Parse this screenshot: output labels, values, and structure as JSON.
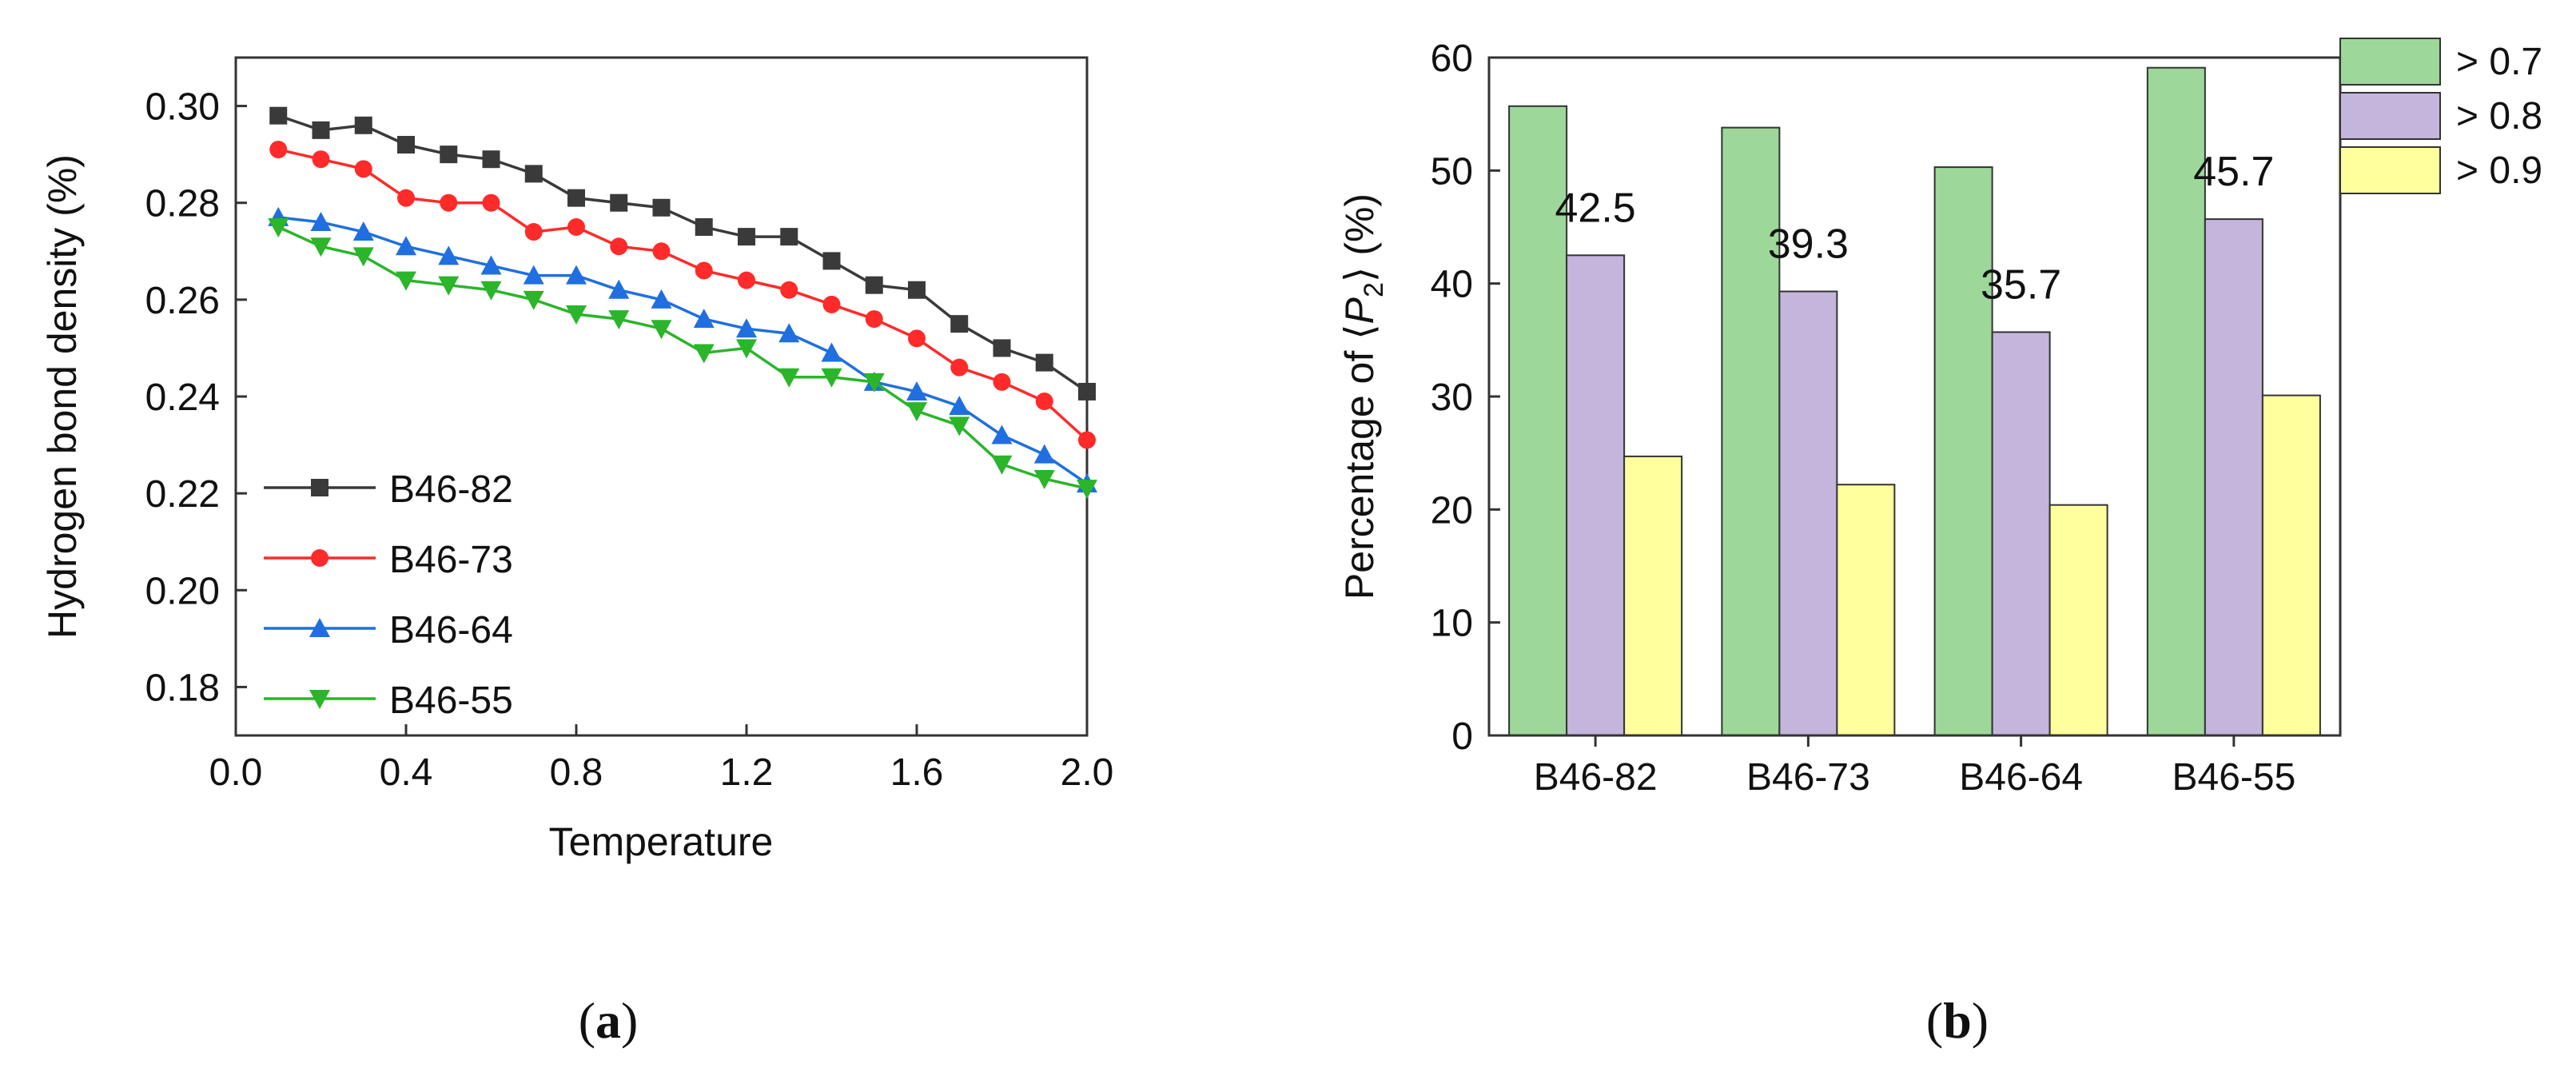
{
  "chart_data": [
    {
      "type": "line",
      "panel_label": "a",
      "xlabel": "Temperature",
      "ylabel": "Hydrogen bond density (%)",
      "xlim": [
        0.0,
        2.0
      ],
      "ylim": [
        0.17,
        0.31
      ],
      "x_ticks": [
        "0.0",
        "0.4",
        "0.8",
        "1.2",
        "1.6",
        "2.0"
      ],
      "y_ticks": [
        "0.18",
        "0.20",
        "0.22",
        "0.24",
        "0.26",
        "0.28",
        "0.30"
      ],
      "legend_position": "bottom-left",
      "x": [
        0.1,
        0.2,
        0.3,
        0.4,
        0.5,
        0.6,
        0.7,
        0.8,
        0.9,
        1.0,
        1.1,
        1.2,
        1.3,
        1.4,
        1.5,
        1.6,
        1.7,
        1.8,
        1.9,
        2.0
      ],
      "series": [
        {
          "name": "B46-82",
          "color": "#3a3a3a",
          "marker": "square",
          "values": [
            0.298,
            0.295,
            0.296,
            0.292,
            0.29,
            0.289,
            0.286,
            0.281,
            0.28,
            0.279,
            0.275,
            0.273,
            0.273,
            0.268,
            0.263,
            0.262,
            0.255,
            0.25,
            0.247,
            0.241
          ]
        },
        {
          "name": "B46-73",
          "color": "#ff2a2a",
          "marker": "circle",
          "values": [
            0.291,
            0.289,
            0.287,
            0.281,
            0.28,
            0.28,
            0.274,
            0.275,
            0.271,
            0.27,
            0.266,
            0.264,
            0.262,
            0.259,
            0.256,
            0.252,
            0.246,
            0.243,
            0.239,
            0.231
          ]
        },
        {
          "name": "B46-64",
          "color": "#1f6fe0",
          "marker": "triangle-up",
          "values": [
            0.277,
            0.276,
            0.274,
            0.271,
            0.269,
            0.267,
            0.265,
            0.265,
            0.262,
            0.26,
            0.256,
            0.254,
            0.253,
            0.249,
            0.243,
            0.241,
            0.238,
            0.232,
            0.228,
            0.222
          ]
        },
        {
          "name": "B46-55",
          "color": "#2ab52a",
          "marker": "triangle-down",
          "values": [
            0.275,
            0.271,
            0.269,
            0.264,
            0.263,
            0.262,
            0.26,
            0.257,
            0.256,
            0.254,
            0.249,
            0.25,
            0.244,
            0.244,
            0.243,
            0.237,
            0.234,
            0.226,
            0.223,
            0.221
          ]
        }
      ]
    },
    {
      "type": "bar",
      "panel_label": "b",
      "ylabel_prefix": "Percentage of ",
      "ylabel_symbol": "P",
      "ylabel_subscript": "2",
      "ylabel_suffix": "(%)",
      "ylim": [
        0,
        60
      ],
      "y_ticks": [
        "0",
        "10",
        "20",
        "30",
        "40",
        "50",
        "60"
      ],
      "categories": [
        "B46-82",
        "B46-73",
        "B46-64",
        "B46-55"
      ],
      "legend_position": "top-right",
      "series": [
        {
          "name": "> 0.7",
          "color": "#9dd79a",
          "values": [
            55.7,
            53.8,
            50.3,
            59.1
          ]
        },
        {
          "name": "> 0.8",
          "color": "#c4b5dd",
          "values": [
            42.5,
            39.3,
            35.7,
            45.7
          ]
        },
        {
          "name": "> 0.9",
          "color": "#ffff9e",
          "values": [
            24.7,
            22.2,
            20.4,
            30.1
          ]
        }
      ],
      "data_labels": [
        "42.5",
        "39.3",
        "35.7",
        "45.7"
      ]
    }
  ]
}
